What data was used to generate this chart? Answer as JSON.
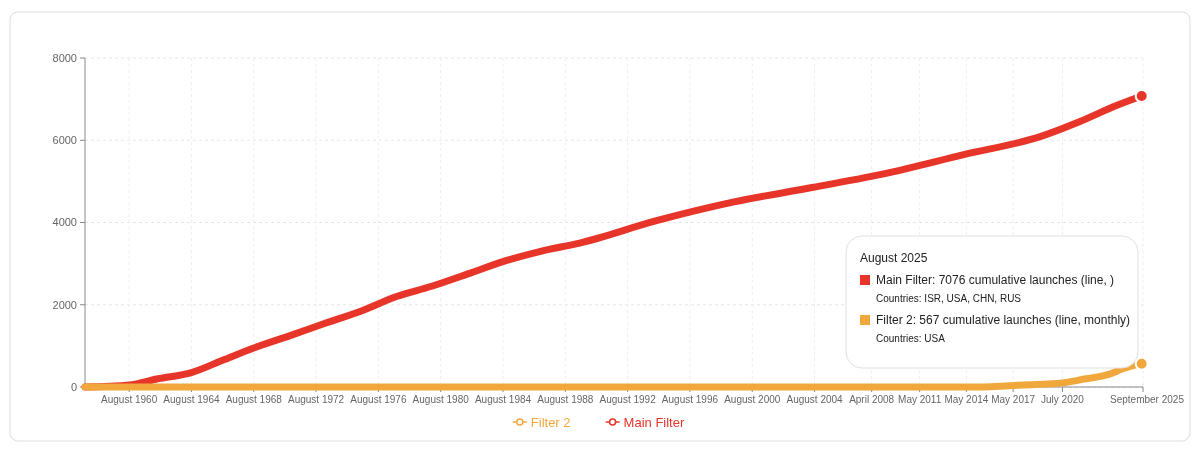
{
  "chart_data": {
    "type": "line",
    "xlim": [
      "1957-10",
      "2025-09"
    ],
    "xticks": [
      {
        "value": "1960-08",
        "label": "August 1960"
      },
      {
        "value": "1964-08",
        "label": "August 1964"
      },
      {
        "value": "1968-08",
        "label": "August 1968"
      },
      {
        "value": "1972-08",
        "label": "August 1972"
      },
      {
        "value": "1976-08",
        "label": "August 1976"
      },
      {
        "value": "1980-08",
        "label": "August 1980"
      },
      {
        "value": "1984-08",
        "label": "August 1984"
      },
      {
        "value": "1988-08",
        "label": "August 1988"
      },
      {
        "value": "1992-08",
        "label": "August 1992"
      },
      {
        "value": "1996-08",
        "label": "August 1996"
      },
      {
        "value": "2000-08",
        "label": "August 2000"
      },
      {
        "value": "2004-08",
        "label": "August 2004"
      },
      {
        "value": "2008-04",
        "label": "April 2008"
      },
      {
        "value": "2011-05",
        "label": "May 2011"
      },
      {
        "value": "2014-05",
        "label": "May 2014"
      },
      {
        "value": "2017-05",
        "label": "May 2017"
      },
      {
        "value": "2020-07",
        "label": "July 2020"
      },
      {
        "value": "2025-09",
        "label": "September 2025"
      }
    ],
    "ylim": [
      0,
      8000
    ],
    "yticks": [
      0,
      2000,
      4000,
      6000,
      8000
    ],
    "grid": true,
    "legend": "bottom",
    "marker": "none",
    "line_style": "solid",
    "series": [
      {
        "name": "Filter 2",
        "color": "#f0a83c",
        "x": [
          "1957-10",
          "2008-09",
          "2015-01",
          "2018-01",
          "2020-07",
          "2022-01",
          "2023-06",
          "2024-06",
          "2025-08"
        ],
        "values": [
          0,
          0,
          0,
          50,
          100,
          200,
          300,
          450,
          567
        ]
      },
      {
        "name": "Main Filter",
        "color": "#e8352a",
        "x": [
          "1957-10",
          "1960-08",
          "1962-06",
          "1964-08",
          "1966-08",
          "1968-08",
          "1970-12",
          "1973-03",
          "1975-07",
          "1977-10",
          "1980-01",
          "1982-05",
          "1984-08",
          "1987-01",
          "1989-07",
          "1994-07",
          "1999-06",
          "2004-06",
          "2009-04",
          "2014-03",
          "2019-03",
          "2021-08",
          "2024-01",
          "2025-08"
        ],
        "values": [
          0,
          50,
          200,
          350,
          650,
          950,
          1250,
          1550,
          1850,
          2200,
          2450,
          2750,
          3050,
          3300,
          3500,
          4050,
          4500,
          4850,
          5200,
          5650,
          6100,
          6450,
          6850,
          7076
        ]
      }
    ],
    "annotations": [
      "August 2025",
      "Main Filter: 7076 cumulative launches (line, )",
      "Countries: ISR, USA, CHN, RUS",
      "Filter 2: 567 cumulative launches (line, monthly)",
      "Countries: USA"
    ]
  }
}
